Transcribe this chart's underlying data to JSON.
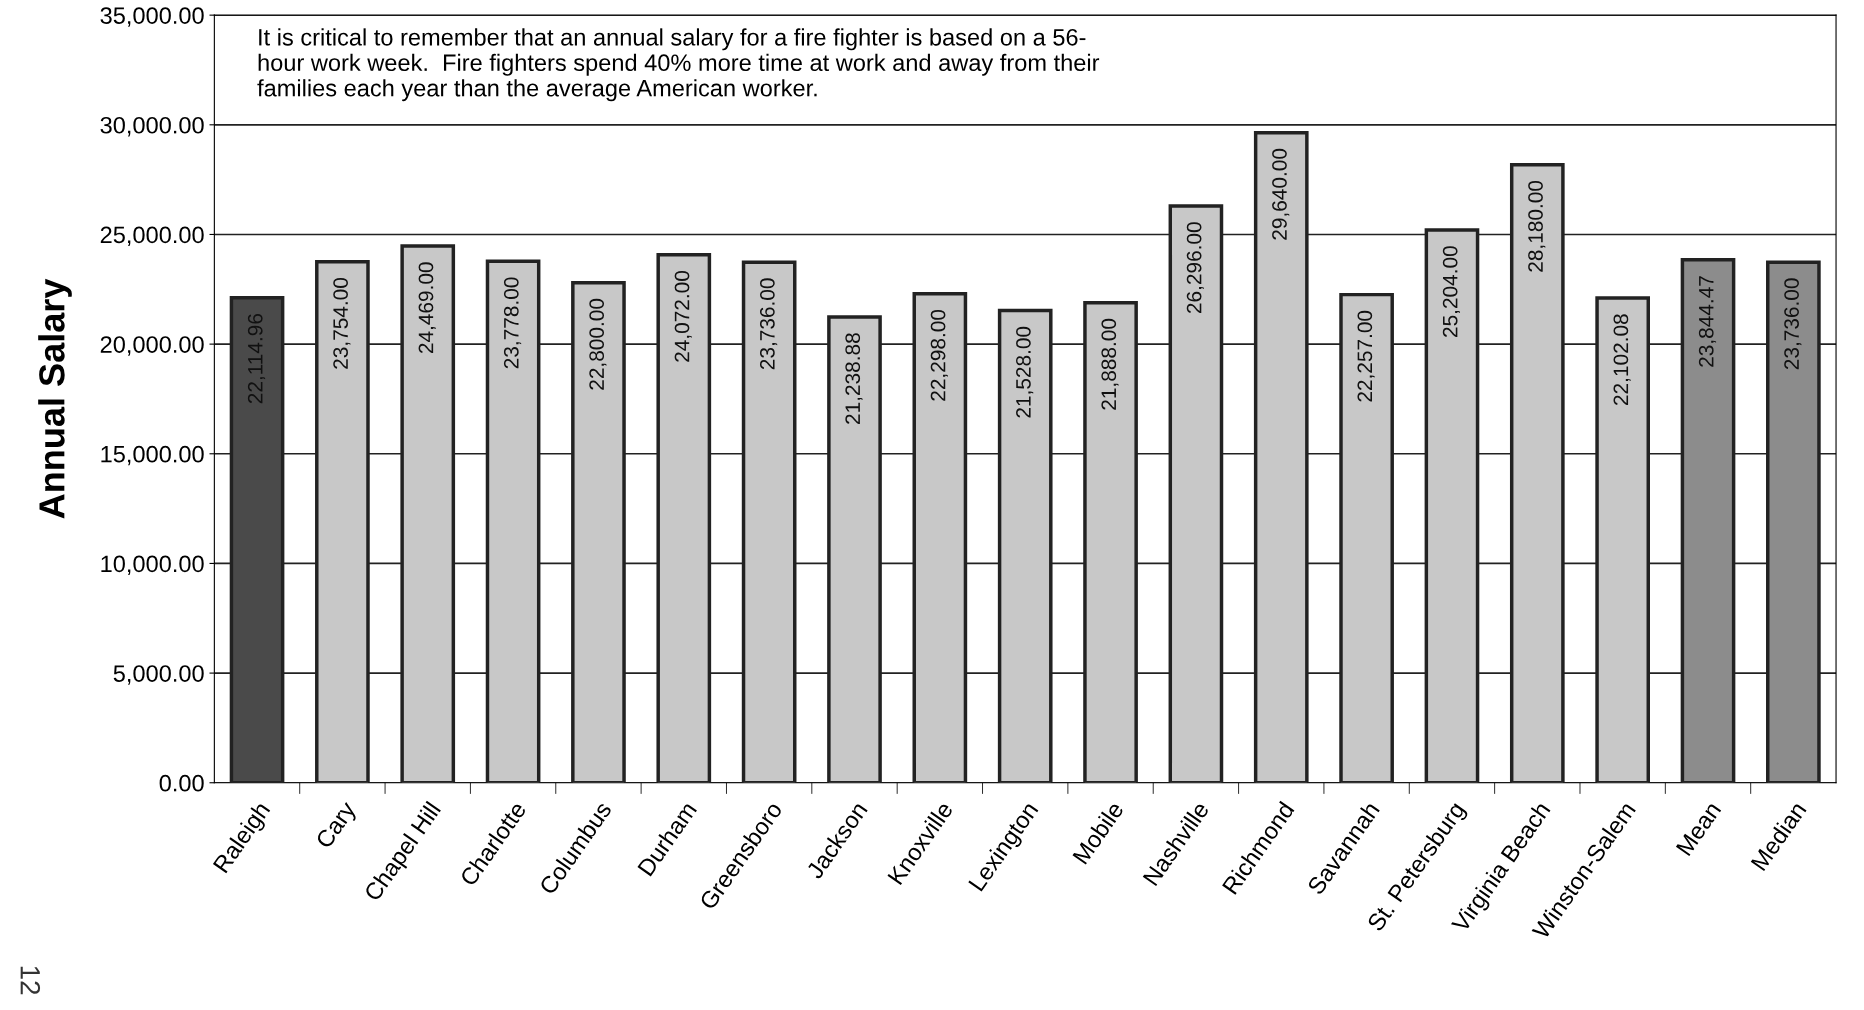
{
  "chart_data": {
    "type": "bar",
    "ylabel": "Annual Salary",
    "categories": [
      "Raleigh",
      "Cary",
      "Chapel Hill",
      "Charlotte",
      "Columbus",
      "Durham",
      "Greensboro",
      "Jackson",
      "Knoxville",
      "Lexington",
      "Mobile",
      "Nashville",
      "Richmond",
      "Savannah",
      "St. Petersburg",
      "Virginia Beach",
      "Winston-Salem",
      "Mean",
      "Median"
    ],
    "values": [
      22114.96,
      23754.0,
      24469.0,
      23778.0,
      22800.0,
      24072.0,
      23736.0,
      21238.88,
      22298.0,
      21528.0,
      21888.0,
      26296.0,
      29640.0,
      22257.0,
      25204.0,
      28180.0,
      22102.08,
      23844.47,
      23736.0
    ],
    "colors": [
      "#4a4a4a",
      "#c8c8c8",
      "#c8c8c8",
      "#c8c8c8",
      "#c8c8c8",
      "#c8c8c8",
      "#c8c8c8",
      "#c8c8c8",
      "#c8c8c8",
      "#c8c8c8",
      "#c8c8c8",
      "#c8c8c8",
      "#c8c8c8",
      "#c8c8c8",
      "#c8c8c8",
      "#c8c8c8",
      "#c8c8c8",
      "#8c8c8c",
      "#8c8c8c"
    ],
    "value_labels": [
      "22,114.96",
      "23,754.00",
      "24,469.00",
      "23,778.00",
      "22,800.00",
      "24,072.00",
      "23,736.00",
      "21,238.88",
      "22,298.00",
      "21,528.00",
      "21,888.00",
      "26,296.00",
      "29,640.00",
      "22,257.00",
      "25,204.00",
      "28,180.00",
      "22,102.08",
      "23,844.47",
      "23,736.00"
    ],
    "ylim": [
      0,
      35000
    ],
    "yticks": [
      {
        "value": 0,
        "label": "0.00"
      },
      {
        "value": 5000,
        "label": "5,000.00"
      },
      {
        "value": 10000,
        "label": "10,000.00"
      },
      {
        "value": 15000,
        "label": "15,000.00"
      },
      {
        "value": 20000,
        "label": "20,000.00"
      },
      {
        "value": 25000,
        "label": "25,000.00"
      },
      {
        "value": 30000,
        "label": "30,000.00"
      },
      {
        "value": 35000,
        "label": "35,000.00"
      }
    ],
    "grid": "y",
    "annotations": [
      "It is critical to remember that an annual salary for a fire fighter is based on a 56-\nhour work week.  Fire fighters spend 40% more time at work and away from their\nfamilies each year than the average American worker.",
      "12"
    ]
  }
}
